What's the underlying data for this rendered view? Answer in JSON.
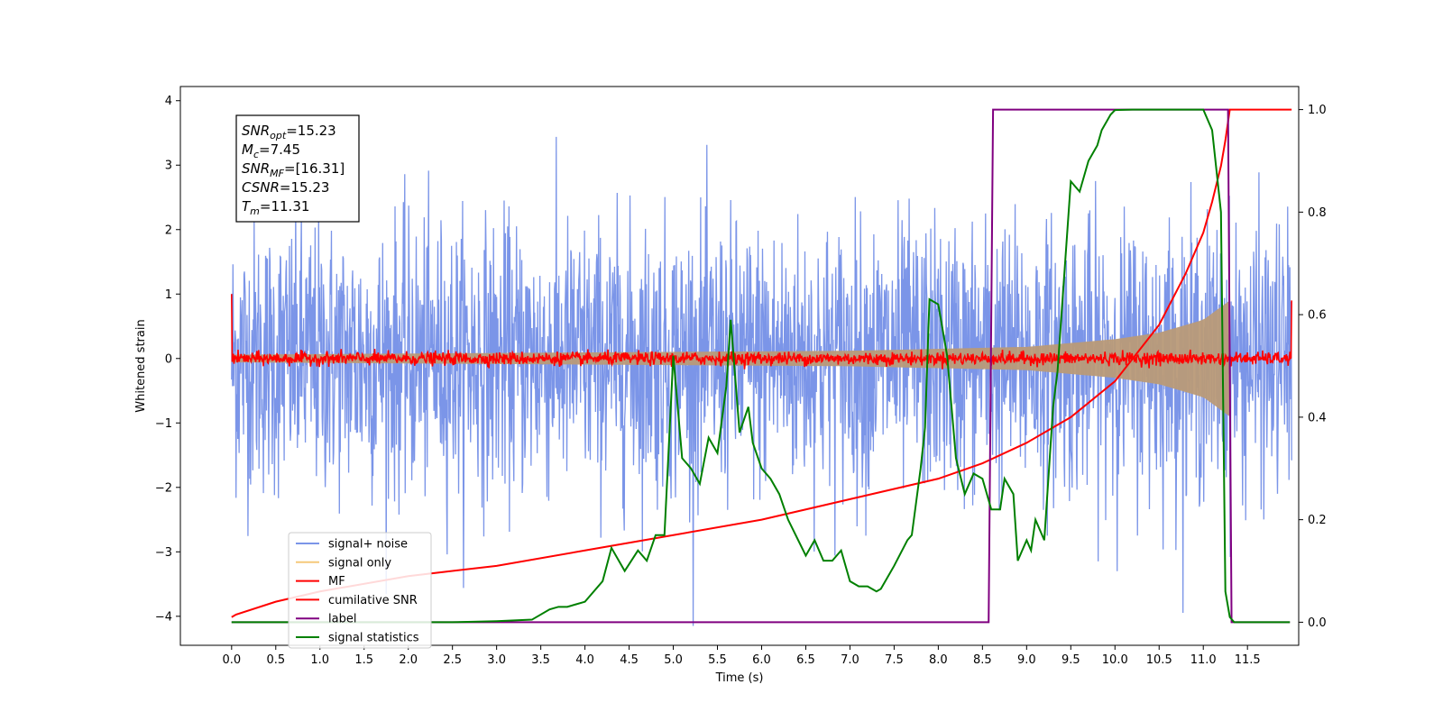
{
  "chart_data": {
    "type": "line",
    "xlabel": "Time (s)",
    "ylabel_left": "Whitened strain",
    "ylabel_right": "",
    "xlim": [
      -0.58,
      12.08
    ],
    "ylim_left": [
      -4.45,
      4.22
    ],
    "ylim_right": [
      -0.045,
      1.045
    ],
    "x_ticks": [
      "0.0",
      "0.5",
      "1.0",
      "1.5",
      "2.0",
      "2.5",
      "3.0",
      "3.5",
      "4.0",
      "4.5",
      "5.0",
      "5.5",
      "6.0",
      "6.5",
      "7.0",
      "7.5",
      "8.0",
      "8.5",
      "9.0",
      "9.5",
      "10.0",
      "10.5",
      "11.0",
      "11.5"
    ],
    "y_ticks_left": [
      "−4",
      "−3",
      "−2",
      "−1",
      "0",
      "1",
      "2",
      "3",
      "4"
    ],
    "y_ticks_right": [
      "0.0",
      "0.2",
      "0.4",
      "0.6",
      "0.8",
      "1.0"
    ],
    "grid": false,
    "legend_position": "lower-left",
    "info_box": {
      "lines": [
        {
          "sym": "SNR",
          "sub": "opt",
          "val": "=15.23"
        },
        {
          "sym": "M",
          "sub": "c",
          "val": "=7.45"
        },
        {
          "sym": "SNR",
          "sub": "MF",
          "val": "=[16.31]"
        },
        {
          "sym": "CSNR",
          "sub": "",
          "val": "=15.23"
        },
        {
          "sym": "T",
          "sub": "m",
          "val": "=11.31"
        }
      ]
    },
    "series": [
      {
        "name": "signal+ noise",
        "color": "#7b95e8",
        "axis": "left",
        "description_range": [
          -4.15,
          3.85
        ],
        "x_range": [
          0.0,
          12.0
        ]
      },
      {
        "name": "signal only",
        "color": "#f5c97a",
        "axis": "left",
        "envelope": {
          "x": [
            0.0,
            7.0,
            9.0,
            10.0,
            10.5,
            11.0,
            11.3
          ],
          "amplitude": [
            0.06,
            0.12,
            0.18,
            0.3,
            0.4,
            0.6,
            0.9
          ]
        }
      },
      {
        "name": "MF",
        "color": "#ff0000",
        "axis": "left",
        "noise_level": 0.05,
        "edge_values": [
          1.0,
          0.9
        ]
      },
      {
        "name": "cumilative SNR",
        "color": "#ff0000",
        "axis": "right",
        "x": [
          0.0,
          0.05,
          0.5,
          1.0,
          2.0,
          3.0,
          4.0,
          5.0,
          6.0,
          7.0,
          8.0,
          8.5,
          9.0,
          9.5,
          10.0,
          10.5,
          10.8,
          11.0,
          11.1,
          11.2,
          11.25,
          11.3,
          12.0
        ],
        "values": [
          0.01,
          0.015,
          0.04,
          0.06,
          0.09,
          0.11,
          0.14,
          0.17,
          0.2,
          0.24,
          0.28,
          0.31,
          0.35,
          0.4,
          0.47,
          0.58,
          0.68,
          0.76,
          0.82,
          0.89,
          0.94,
          1.0,
          1.0
        ]
      },
      {
        "name": "label",
        "color": "#800080",
        "axis": "right",
        "x": [
          0.0,
          8.57,
          8.62,
          11.28,
          11.32,
          11.98
        ],
        "values": [
          0.0,
          0.0,
          1.0,
          1.0,
          0.0,
          0.0
        ]
      },
      {
        "name": "signal statistics",
        "color": "#008000",
        "axis": "right",
        "x": [
          0.0,
          1.0,
          2.0,
          2.5,
          3.0,
          3.4,
          3.6,
          3.7,
          3.8,
          3.9,
          4.0,
          4.2,
          4.3,
          4.45,
          4.6,
          4.7,
          4.8,
          4.9,
          5.0,
          5.1,
          5.2,
          5.3,
          5.4,
          5.5,
          5.6,
          5.65,
          5.7,
          5.75,
          5.85,
          5.9,
          6.0,
          6.1,
          6.2,
          6.3,
          6.5,
          6.6,
          6.7,
          6.8,
          6.9,
          7.0,
          7.1,
          7.2,
          7.3,
          7.35,
          7.5,
          7.65,
          7.7,
          7.8,
          7.85,
          7.9,
          8.0,
          8.1,
          8.2,
          8.3,
          8.4,
          8.5,
          8.6,
          8.7,
          8.75,
          8.85,
          8.9,
          9.0,
          9.05,
          9.1,
          9.2,
          9.3,
          9.35,
          9.5,
          9.6,
          9.7,
          9.8,
          9.85,
          9.95,
          10.0,
          10.2,
          10.4,
          10.6,
          10.8,
          11.0,
          11.1,
          11.2,
          11.25,
          11.3,
          11.35,
          11.98
        ],
        "values": [
          0.0,
          0.0,
          0.0,
          0.0,
          0.002,
          0.005,
          0.025,
          0.03,
          0.03,
          0.035,
          0.04,
          0.08,
          0.145,
          0.1,
          0.14,
          0.12,
          0.17,
          0.17,
          0.52,
          0.32,
          0.3,
          0.27,
          0.36,
          0.33,
          0.46,
          0.59,
          0.48,
          0.37,
          0.42,
          0.35,
          0.3,
          0.28,
          0.25,
          0.2,
          0.13,
          0.16,
          0.12,
          0.12,
          0.14,
          0.08,
          0.07,
          0.07,
          0.06,
          0.065,
          0.11,
          0.16,
          0.17,
          0.3,
          0.38,
          0.63,
          0.62,
          0.52,
          0.32,
          0.25,
          0.29,
          0.28,
          0.22,
          0.22,
          0.28,
          0.25,
          0.12,
          0.16,
          0.14,
          0.2,
          0.16,
          0.42,
          0.49,
          0.86,
          0.84,
          0.9,
          0.93,
          0.96,
          0.99,
          0.999,
          1.0,
          1.0,
          1.0,
          1.0,
          1.0,
          0.96,
          0.8,
          0.06,
          0.01,
          0.0,
          0.0
        ]
      }
    ]
  }
}
